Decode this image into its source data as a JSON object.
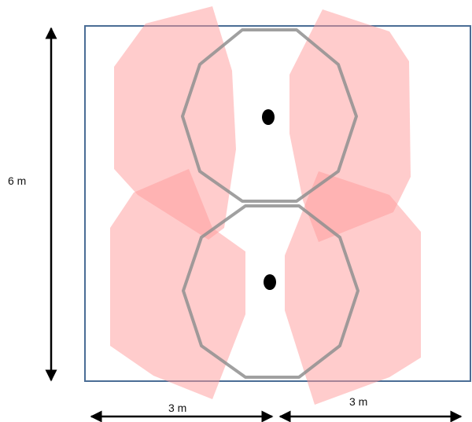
{
  "labels": {
    "height": "6 m",
    "width_left": "3 m",
    "width_right": "3 m"
  },
  "colors": {
    "room_border": "#4a6d95",
    "zone_fill": "#ff9a9a",
    "ring_stroke": "#8f8f8f",
    "marker": "#000000",
    "arrow": "#000000"
  }
}
